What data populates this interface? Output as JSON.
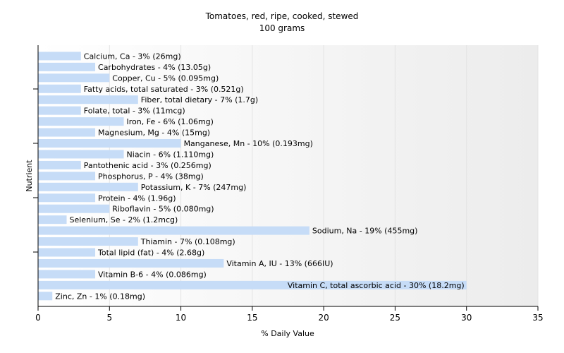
{
  "chart_data": {
    "type": "bar",
    "orientation": "horizontal",
    "title": "Tomatoes, red, ripe, cooked, stewed",
    "subtitle": "100 grams",
    "xlabel": "% Daily Value",
    "ylabel": "Nutrient",
    "xlim": [
      0,
      35
    ],
    "xticks": [
      0,
      5,
      10,
      15,
      20,
      25,
      30,
      35
    ],
    "grid": "vertical",
    "bar_color": "#c6dcf7",
    "categories": [
      "Calcium, Ca - 3% (26mg)",
      "Carbohydrates - 4% (13.05g)",
      "Copper, Cu - 5% (0.095mg)",
      "Fatty acids, total saturated - 3% (0.521g)",
      "Fiber, total dietary - 7% (1.7g)",
      "Folate, total - 3% (11mcg)",
      "Iron, Fe - 6% (1.06mg)",
      "Magnesium, Mg - 4% (15mg)",
      "Manganese, Mn - 10% (0.193mg)",
      "Niacin - 6% (1.110mg)",
      "Pantothenic acid - 3% (0.256mg)",
      "Phosphorus, P - 4% (38mg)",
      "Potassium, K - 7% (247mg)",
      "Protein - 4% (1.96g)",
      "Riboflavin - 5% (0.080mg)",
      "Selenium, Se - 2% (1.2mcg)",
      "Sodium, Na - 19% (455mg)",
      "Thiamin - 7% (0.108mg)",
      "Total lipid (fat) - 4% (2.68g)",
      "Vitamin A, IU - 13% (666IU)",
      "Vitamin B-6 - 4% (0.086mg)",
      "Vitamin C, total ascorbic acid - 30% (18.2mg)",
      "Zinc, Zn - 1% (0.18mg)"
    ],
    "values": [
      3,
      4,
      5,
      3,
      7,
      3,
      6,
      4,
      10,
      6,
      3,
      4,
      7,
      4,
      5,
      2,
      19,
      7,
      4,
      13,
      4,
      30,
      1
    ]
  }
}
